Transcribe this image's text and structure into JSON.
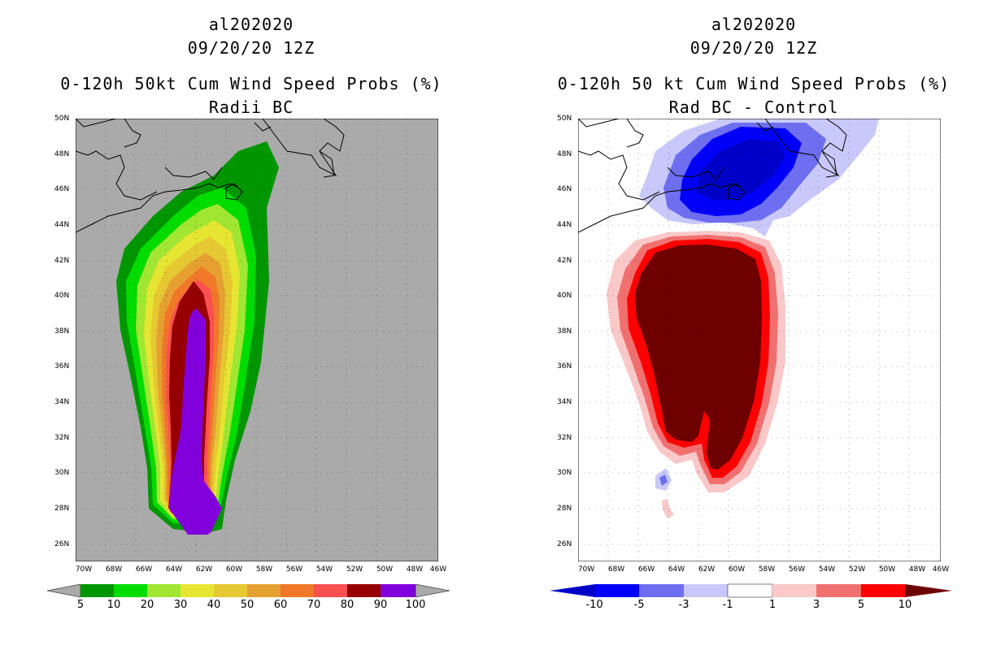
{
  "left": {
    "title_storm": "al202020",
    "title_time": "09/20/20 12Z",
    "title_product": "0-120h 50kt Cum Wind Speed Probs (%)",
    "title_sub": "Radii BC",
    "colorbar_labels": [
      "5",
      "10",
      "20",
      "30",
      "40",
      "50",
      "60",
      "70",
      "80",
      "90",
      "100"
    ],
    "colorbar_colors": [
      "#009600",
      "#00dc00",
      "#a0e632",
      "#e6e632",
      "#e6c832",
      "#e6a032",
      "#f07828",
      "#fa5050",
      "#960000",
      "#8200dc"
    ]
  },
  "right": {
    "title_storm": "al202020",
    "title_time": "09/20/20 12Z",
    "title_product": "0-120h 50 kt Cum Wind Speed Probs (%)",
    "title_sub": "Rad BC - Control",
    "colorbar_labels": [
      "-10",
      "-5",
      "-3",
      "-1",
      "1",
      "3",
      "5",
      "10"
    ],
    "colorbar_colors": [
      "#0000c8",
      "#0000fa",
      "#6e6ef0",
      "#c8c8fa",
      "#ffffff",
      "#fac8c8",
      "#f07070",
      "#ff0000",
      "#6e0000"
    ]
  },
  "lat_labels": [
    "50N",
    "48N",
    "46N",
    "44N",
    "42N",
    "40N",
    "38N",
    "36N",
    "34N",
    "32N",
    "30N",
    "28N",
    "26N"
  ],
  "lon_labels": [
    "70W",
    "68W",
    "66W",
    "64W",
    "62W",
    "60W",
    "58W",
    "56W",
    "54W",
    "52W",
    "50W",
    "48W",
    "46W"
  ],
  "colors": {
    "ocean_left": "#aaaaaa",
    "land_left": "#aaaaaa"
  }
}
